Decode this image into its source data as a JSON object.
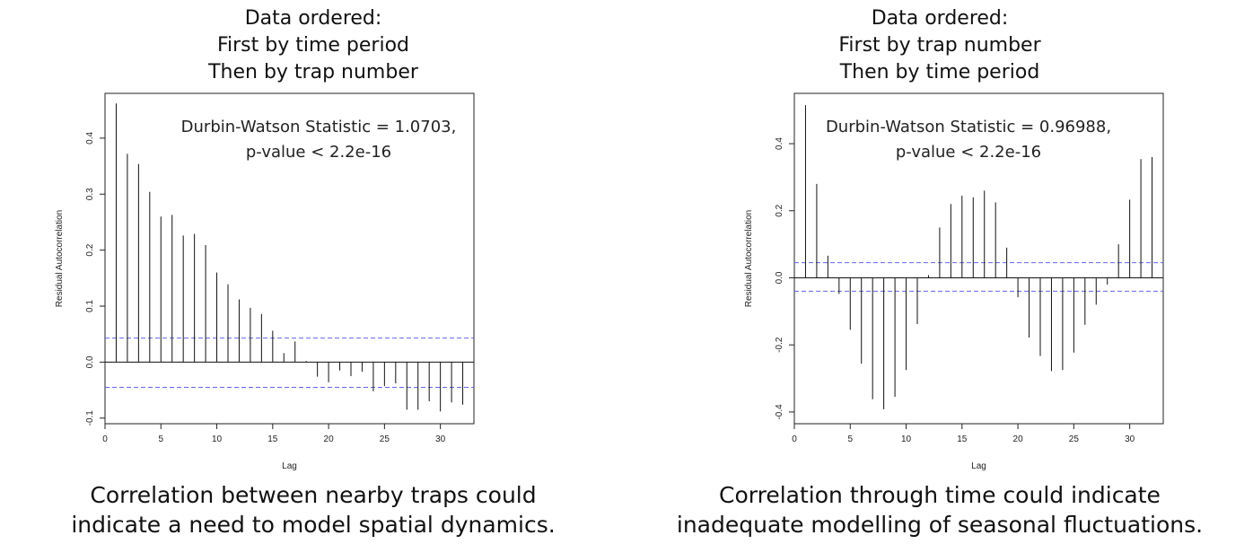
{
  "chart_data": [
    {
      "type": "bar",
      "title_lines": [
        "Data ordered:",
        "First by time period",
        "Then by trap number"
      ],
      "caption_lines": [
        "Correlation between nearby traps could",
        "indicate a need to model spatial dynamics."
      ],
      "annotation_lines": [
        "Durbin-Watson Statistic = 1.0703,",
        "p-value < 2.2e-16"
      ],
      "xlabel": "Lag",
      "ylabel": "Residual Autocorrelation",
      "xlim": [
        0,
        33
      ],
      "ylim": [
        -0.11,
        0.48
      ],
      "xticks": [
        0,
        5,
        10,
        15,
        20,
        25,
        30
      ],
      "yticks": [
        -0.1,
        0.0,
        0.1,
        0.2,
        0.3,
        0.4
      ],
      "ytick_labels": [
        "-0.1",
        "0.0",
        "0.1",
        "0.2",
        "0.3",
        "0.4"
      ],
      "confidence_bounds": [
        0.043,
        -0.045
      ],
      "bound_color": "#6666ee",
      "x": [
        1,
        2,
        3,
        4,
        5,
        6,
        7,
        8,
        9,
        10,
        11,
        12,
        13,
        14,
        15,
        16,
        17,
        18,
        19,
        20,
        21,
        22,
        23,
        24,
        25,
        26,
        27,
        28,
        29,
        30,
        31,
        32
      ],
      "values": [
        0.462,
        0.372,
        0.354,
        0.304,
        0.26,
        0.263,
        0.226,
        0.229,
        0.209,
        0.16,
        0.139,
        0.112,
        0.097,
        0.086,
        0.056,
        0.016,
        0.037,
        0.002,
        -0.026,
        -0.036,
        -0.015,
        -0.025,
        -0.017,
        -0.052,
        -0.043,
        -0.038,
        -0.085,
        -0.085,
        -0.07,
        -0.088,
        -0.072,
        -0.076
      ]
    },
    {
      "type": "bar",
      "title_lines": [
        "Data ordered:",
        "First by trap number",
        "Then by time period"
      ],
      "caption_lines": [
        "Correlation through time could indicate",
        "inadequate modelling of seasonal fluctuations."
      ],
      "annotation_lines": [
        "Durbin-Watson Statistic = 0.96988,",
        "p-value < 2.2e-16"
      ],
      "xlabel": "Lag",
      "ylabel": "Residual Autocorrelation",
      "xlim": [
        0,
        33
      ],
      "ylim": [
        -0.435,
        0.55
      ],
      "xticks": [
        0,
        5,
        10,
        15,
        20,
        25,
        30
      ],
      "yticks": [
        -0.4,
        -0.2,
        0.0,
        0.2,
        0.4
      ],
      "ytick_labels": [
        "-0.4",
        "-0.2",
        "0.0",
        "0.2",
        "0.4"
      ],
      "confidence_bounds": [
        0.045,
        -0.04
      ],
      "bound_color": "#6666ee",
      "x": [
        1,
        2,
        3,
        4,
        5,
        6,
        7,
        8,
        9,
        10,
        11,
        12,
        13,
        14,
        15,
        16,
        17,
        18,
        19,
        20,
        21,
        22,
        23,
        24,
        25,
        26,
        27,
        28,
        29,
        30,
        31,
        32
      ],
      "values": [
        0.515,
        0.28,
        0.066,
        -0.048,
        -0.155,
        -0.256,
        -0.362,
        -0.392,
        -0.355,
        -0.275,
        -0.138,
        0.008,
        0.15,
        0.22,
        0.245,
        0.24,
        0.26,
        0.225,
        0.09,
        -0.058,
        -0.178,
        -0.233,
        -0.278,
        -0.275,
        -0.223,
        -0.14,
        -0.08,
        -0.02,
        0.1,
        0.233,
        0.354,
        0.36
      ]
    }
  ]
}
